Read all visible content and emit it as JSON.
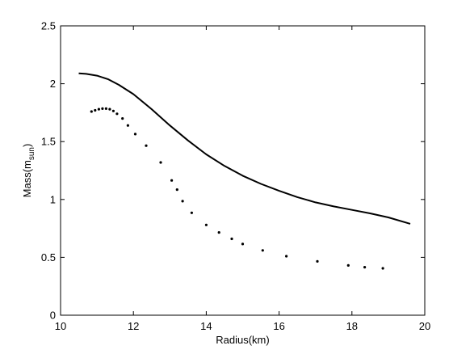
{
  "chart_data": {
    "type": "line",
    "xlabel": "Radius(km)",
    "ylabel": {
      "base": "Mass(m",
      "sub": "sun",
      "close": ")"
    },
    "xlim": [
      10,
      20
    ],
    "ylim": [
      0,
      2.5
    ],
    "xticks": [
      "10",
      "12",
      "14",
      "16",
      "18",
      "20"
    ],
    "yticks": [
      "0",
      "0.5",
      "1",
      "1.5",
      "2",
      "2.5"
    ],
    "grid": false,
    "box": true,
    "series": [
      {
        "style": "solid-line",
        "color": "#000000",
        "x": [
          10.5,
          10.7,
          11.0,
          11.3,
          11.6,
          12.0,
          12.5,
          13.0,
          13.5,
          14.0,
          14.5,
          15.0,
          15.5,
          16.0,
          16.5,
          17.0,
          17.5,
          18.0,
          18.5,
          19.0,
          19.6
        ],
        "y": [
          2.09,
          2.085,
          2.07,
          2.04,
          1.99,
          1.91,
          1.78,
          1.64,
          1.51,
          1.39,
          1.29,
          1.205,
          1.135,
          1.075,
          1.02,
          0.975,
          0.94,
          0.91,
          0.88,
          0.845,
          0.79
        ]
      },
      {
        "style": "dots",
        "color": "#000000",
        "x": [
          10.85,
          10.95,
          11.05,
          11.15,
          11.25,
          11.35,
          11.45,
          11.55,
          11.7,
          11.85,
          12.05,
          12.35,
          12.75,
          13.05,
          13.2,
          13.35,
          13.6,
          14.0,
          14.35,
          14.7,
          15.0,
          15.55,
          16.2,
          17.05,
          17.9,
          18.35,
          18.85
        ],
        "y": [
          1.76,
          1.77,
          1.78,
          1.785,
          1.785,
          1.78,
          1.765,
          1.74,
          1.7,
          1.64,
          1.565,
          1.465,
          1.32,
          1.165,
          1.085,
          0.985,
          0.885,
          0.78,
          0.715,
          0.66,
          0.615,
          0.56,
          0.51,
          0.465,
          0.43,
          0.415,
          0.405
        ]
      }
    ]
  }
}
